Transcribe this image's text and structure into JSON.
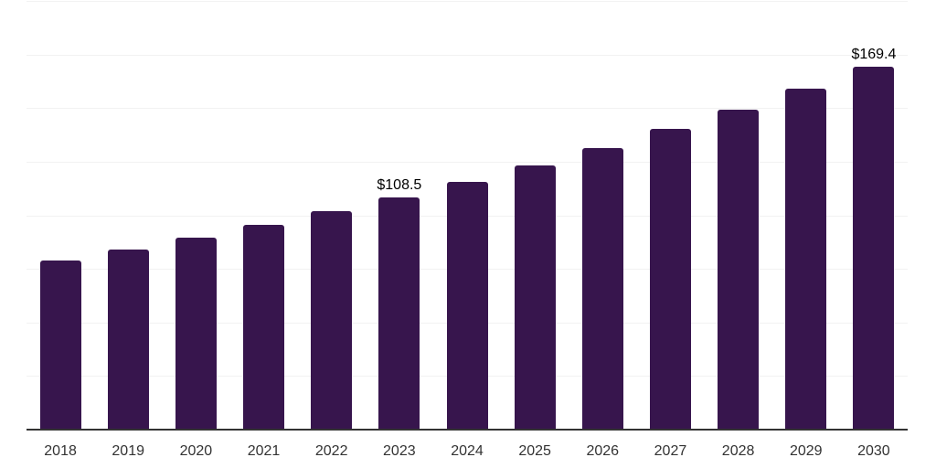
{
  "chart_data": {
    "type": "bar",
    "title": "",
    "xlabel": "",
    "ylabel": "",
    "categories": [
      "2018",
      "2019",
      "2020",
      "2021",
      "2022",
      "2023",
      "2024",
      "2025",
      "2026",
      "2027",
      "2028",
      "2029",
      "2030"
    ],
    "values": [
      78.9,
      84.1,
      89.6,
      95.5,
      101.8,
      108.5,
      115.6,
      123.3,
      131.4,
      140.1,
      149.3,
      159.2,
      169.4
    ],
    "data_labels": {
      "2023": "$108.5",
      "2030": "$169.4"
    },
    "value_prefix": "$",
    "ylim": [
      0,
      200
    ],
    "gridline_interval": 25,
    "grid": "horizontal",
    "y_axis_labels_shown": false,
    "legend_position": "none",
    "colors": {
      "bar": "#37154d",
      "gridline": "#f2f2f2",
      "axis_line": "#333333",
      "x_tick_label": "#333333",
      "data_label": "#000000",
      "background": "#ffffff"
    }
  }
}
